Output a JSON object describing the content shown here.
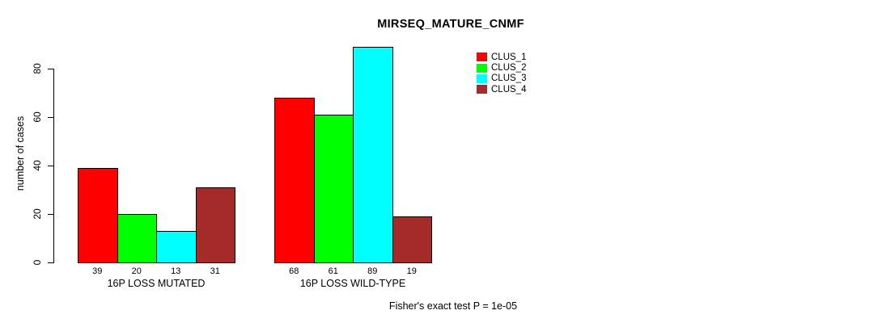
{
  "chart_data": {
    "type": "bar",
    "title": "MIRSEQ_MATURE_CNMF",
    "ylabel": "number of cases",
    "yticks": [
      0,
      20,
      40,
      60,
      80
    ],
    "ylim": [
      0,
      89
    ],
    "grid": false,
    "legend_position": "top-right",
    "categories": [
      "16P LOSS MUTATED",
      "16P LOSS WILD-TYPE"
    ],
    "series": [
      {
        "name": "CLUS_1",
        "color": "#ff0000",
        "values": [
          39,
          68
        ]
      },
      {
        "name": "CLUS_2",
        "color": "#00ff00",
        "values": [
          20,
          61
        ]
      },
      {
        "name": "CLUS_3",
        "color": "#00ffff",
        "values": [
          13,
          89
        ]
      },
      {
        "name": "CLUS_4",
        "color": "#a52a2a",
        "values": [
          31,
          19
        ]
      }
    ],
    "bar_value_labels": [
      [
        39,
        20,
        13,
        31
      ],
      [
        68,
        61,
        89,
        19
      ]
    ],
    "annotation": "Fisher's exact test P = 1e-05"
  },
  "colors": {
    "axis": "#000000",
    "background": "#ffffff"
  }
}
